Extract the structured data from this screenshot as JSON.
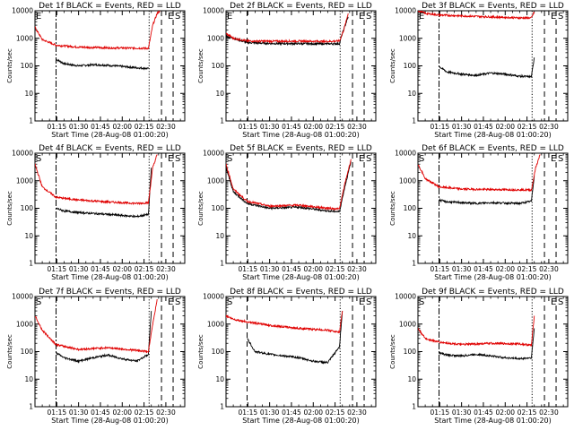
{
  "chart_data": {
    "type": "line",
    "y_scale": "log",
    "ylim": [
      1,
      10000
    ],
    "x_ticks": [
      "01:15",
      "01:30",
      "01:45",
      "02:00",
      "02:15",
      "02:30"
    ],
    "x_tick_minutes_after_start": [
      15,
      30,
      45,
      60,
      75,
      90
    ],
    "xlim_minutes_after_start": [
      0,
      103
    ],
    "xlabel": "Start Time (28-Aug-08 01:00:20)",
    "ylabel": "Counts/sec",
    "y_ticks": [
      "1",
      "10",
      "100",
      "1000",
      "10000"
    ],
    "events_color": "#000000",
    "lld_color": "#e00000",
    "panels": [
      {
        "title": "Det 1f BLACK = Events, RED = LLD",
        "markers": [
          "E",
          "E",
          "S"
        ],
        "lines": [
          {
            "style": "dashdot",
            "x": 14.5
          },
          {
            "style": "dotted",
            "x": 78.5
          },
          {
            "style": "dashed",
            "x": 87
          },
          {
            "style": "dashed",
            "x": 95
          }
        ],
        "events": {
          "x": [
            14.5,
            20,
            30,
            40,
            50,
            60,
            70,
            78
          ],
          "y": [
            175,
            120,
            100,
            110,
            105,
            95,
            85,
            80
          ]
        },
        "lld": {
          "x": [
            0,
            5,
            14.5,
            30,
            50,
            70,
            78,
            81,
            84,
            87
          ],
          "y": [
            2500,
            900,
            560,
            480,
            450,
            440,
            430,
            3000,
            8000,
            11000
          ]
        }
      },
      {
        "title": "Det 2f BLACK = Events, RED = LLD",
        "markers": [
          "E",
          "E",
          "S"
        ],
        "lines": [
          {
            "style": "dashed",
            "x": 14.5
          },
          {
            "style": "dotted",
            "x": 78.5
          },
          {
            "style": "dashed",
            "x": 87
          },
          {
            "style": "dashed",
            "x": 95
          }
        ],
        "events": {
          "x": [
            0,
            5,
            14.5,
            30,
            50,
            70,
            78,
            80,
            84
          ],
          "y": [
            1200,
            1000,
            700,
            650,
            640,
            630,
            640,
            1500,
            6000
          ]
        },
        "lld": {
          "x": [
            0,
            5,
            14.5,
            30,
            50,
            70,
            78,
            81,
            84
          ],
          "y": [
            1500,
            1000,
            800,
            780,
            790,
            770,
            800,
            2000,
            8000
          ]
        }
      },
      {
        "title": "Det 3f BLACK = Events, RED = LLD",
        "markers": [
          "E",
          "E",
          "S"
        ],
        "lines": [
          {
            "style": "dashdot",
            "x": 14.5
          },
          {
            "style": "dotted",
            "x": 78.5
          },
          {
            "style": "dashed",
            "x": 87
          },
          {
            "style": "dashed",
            "x": 95
          }
        ],
        "events": {
          "x": [
            14.5,
            20,
            30,
            40,
            50,
            60,
            70,
            78,
            80
          ],
          "y": [
            95,
            60,
            50,
            45,
            55,
            50,
            42,
            40,
            200
          ]
        },
        "lld": {
          "x": [
            0,
            5,
            14.5,
            30,
            50,
            70,
            78,
            80
          ],
          "y": [
            10000,
            8000,
            7000,
            6500,
            6000,
            5500,
            5500,
            9000
          ]
        }
      },
      {
        "title": "Det 4f BLACK = Events, RED = LLD",
        "markers": [
          "S",
          "E",
          "S"
        ],
        "lines": [
          {
            "style": "dashdot",
            "x": 14.5
          },
          {
            "style": "dotted",
            "x": 78.5
          },
          {
            "style": "dashed",
            "x": 87
          },
          {
            "style": "dashed",
            "x": 95
          }
        ],
        "events": {
          "x": [
            14.5,
            20,
            30,
            40,
            50,
            60,
            70,
            78,
            80
          ],
          "y": [
            100,
            80,
            70,
            65,
            60,
            55,
            50,
            60,
            3000
          ]
        },
        "lld": {
          "x": [
            0,
            5,
            14.5,
            30,
            50,
            70,
            78,
            81,
            84
          ],
          "y": [
            4000,
            600,
            250,
            200,
            170,
            150,
            160,
            3000,
            9000
          ]
        }
      },
      {
        "title": "Det 5f BLACK = Events, RED = LLD",
        "markers": [
          "S",
          "E",
          "S"
        ],
        "lines": [
          {
            "style": "dashed",
            "x": 14.5
          },
          {
            "style": "dotted",
            "x": 78.5
          },
          {
            "style": "dashed",
            "x": 87
          },
          {
            "style": "dashed",
            "x": 95
          }
        ],
        "events": {
          "x": [
            0,
            5,
            14.5,
            30,
            50,
            70,
            78,
            82,
            86
          ],
          "y": [
            3000,
            400,
            150,
            100,
            110,
            80,
            75,
            700,
            5000
          ]
        },
        "lld": {
          "x": [
            0,
            5,
            14.5,
            30,
            50,
            70,
            78,
            82,
            86
          ],
          "y": [
            4000,
            500,
            180,
            120,
            130,
            100,
            95,
            900,
            6000
          ]
        }
      },
      {
        "title": "Det 6f BLACK = Events, RED = LLD",
        "markers": [
          "S",
          "E",
          "S"
        ],
        "lines": [
          {
            "style": "dashdot",
            "x": 14.5
          },
          {
            "style": "dotted",
            "x": 78.5
          },
          {
            "style": "dashed",
            "x": 87
          },
          {
            "style": "dashed",
            "x": 95
          }
        ],
        "events": {
          "x": [
            14.5,
            20,
            30,
            40,
            50,
            60,
            70,
            78,
            80
          ],
          "y": [
            200,
            170,
            160,
            150,
            160,
            155,
            150,
            180,
            1500
          ]
        },
        "lld": {
          "x": [
            0,
            5,
            14.5,
            30,
            50,
            70,
            78,
            81,
            84
          ],
          "y": [
            4000,
            1200,
            600,
            500,
            480,
            470,
            460,
            3000,
            9000
          ]
        }
      },
      {
        "title": "Det 7f BLACK = Events, RED = LLD",
        "markers": [
          "S",
          "E",
          "S"
        ],
        "lines": [
          {
            "style": "dashdot",
            "x": 14.5
          },
          {
            "style": "dotted",
            "x": 78.5
          },
          {
            "style": "dashed",
            "x": 87
          },
          {
            "style": "dashed",
            "x": 95
          }
        ],
        "events": {
          "x": [
            14.5,
            20,
            30,
            40,
            50,
            60,
            70,
            78,
            80
          ],
          "y": [
            90,
            60,
            45,
            60,
            75,
            55,
            45,
            80,
            3000
          ]
        },
        "lld": {
          "x": [
            0,
            5,
            14.5,
            30,
            50,
            70,
            78,
            81,
            84
          ],
          "y": [
            2000,
            600,
            180,
            120,
            140,
            110,
            100,
            1000,
            8000
          ]
        }
      },
      {
        "title": "Det 8f BLACK = Events, RED = LLD",
        "markers": [
          "S",
          "E",
          "S"
        ],
        "lines": [
          {
            "style": "dashed",
            "x": 14.5
          },
          {
            "style": "dotted",
            "x": 78.5
          },
          {
            "style": "dashed",
            "x": 87
          },
          {
            "style": "dashed",
            "x": 95
          }
        ],
        "events": {
          "x": [
            14.5,
            20,
            30,
            40,
            50,
            60,
            70,
            78,
            80
          ],
          "y": [
            300,
            100,
            80,
            70,
            60,
            45,
            40,
            150,
            3000
          ]
        },
        "lld": {
          "x": [
            0,
            5,
            14.5,
            30,
            50,
            70,
            78,
            80
          ],
          "y": [
            2000,
            1500,
            1200,
            900,
            700,
            600,
            500,
            3000
          ]
        }
      },
      {
        "title": "Det 9f BLACK = Events, RED = LLD",
        "markers": [
          "S",
          "E",
          "S"
        ],
        "lines": [
          {
            "style": "dashdot",
            "x": 14.5
          },
          {
            "style": "dotted",
            "x": 78.5
          },
          {
            "style": "dashed",
            "x": 87
          },
          {
            "style": "dashed",
            "x": 95
          }
        ],
        "events": {
          "x": [
            14.5,
            20,
            30,
            40,
            50,
            60,
            70,
            78,
            80
          ],
          "y": [
            90,
            75,
            70,
            80,
            70,
            60,
            55,
            60,
            700
          ]
        },
        "lld": {
          "x": [
            0,
            5,
            14.5,
            30,
            50,
            70,
            78,
            80
          ],
          "y": [
            700,
            300,
            220,
            180,
            200,
            190,
            170,
            2000
          ]
        }
      }
    ]
  }
}
